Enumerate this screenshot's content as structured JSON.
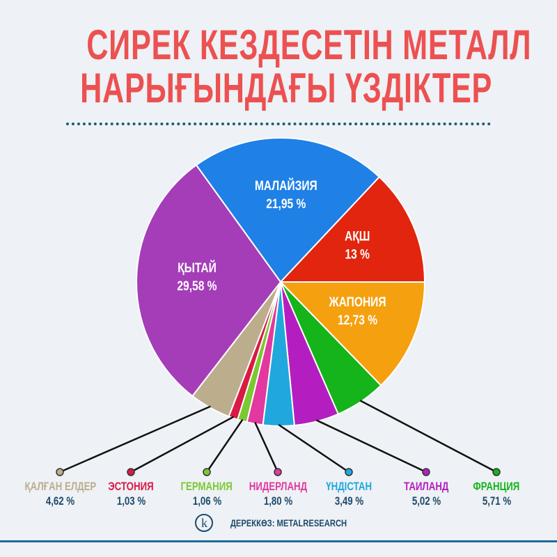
{
  "chart_data": {
    "type": "pie",
    "title_lines": [
      "СИРЕК КЕЗДЕСЕТІН МЕТАЛЛ",
      "НАРЫҒЫНДАҒЫ ҮЗДІКТЕР"
    ],
    "slices": [
      {
        "name": "МАЛАЙЗИЯ",
        "value": 21.95,
        "label": "21,95 %",
        "color": "#1f80e6",
        "inside": true
      },
      {
        "name": "АҚШ",
        "value": 13,
        "label": "13 %",
        "color": "#e2250e",
        "inside": true
      },
      {
        "name": "ЖАПОНИЯ",
        "value": 12.73,
        "label": "12,73 %",
        "color": "#f5a00f",
        "inside": true
      },
      {
        "name": "ФРАНЦИЯ",
        "value": 5.71,
        "label": "5,71 %",
        "color": "#15b41a",
        "inside": false
      },
      {
        "name": "ТАИЛАНД",
        "value": 5.02,
        "label": "5,02 %",
        "color": "#b41ec0",
        "inside": false
      },
      {
        "name": "ҮНДІСТАН",
        "value": 3.49,
        "label": "3,49 %",
        "color": "#20a8dd",
        "inside": false
      },
      {
        "name": "НИДЕРЛАНД",
        "value": 1.8,
        "label": "1,80 %",
        "color": "#e2389f",
        "inside": false
      },
      {
        "name": "ГЕРМАНИЯ",
        "value": 1.06,
        "label": "1,06 %",
        "color": "#7cc832",
        "inside": false
      },
      {
        "name": "ЭСТОНИЯ",
        "value": 1.03,
        "label": "1,03 %",
        "color": "#d81a45",
        "inside": false
      },
      {
        "name": "ҚАЛҒАН ЕЛДЕР",
        "value": 4.62,
        "label": "4,62 %",
        "color": "#bcae8c",
        "inside": false
      },
      {
        "name": "ҚЫТАЙ",
        "value": 29.58,
        "label": "29,58 %",
        "color": "#a53db9",
        "inside": true
      }
    ]
  },
  "source": {
    "logo": "k",
    "text": "ДЕРЕККӨЗ: METALRESEARCH"
  }
}
